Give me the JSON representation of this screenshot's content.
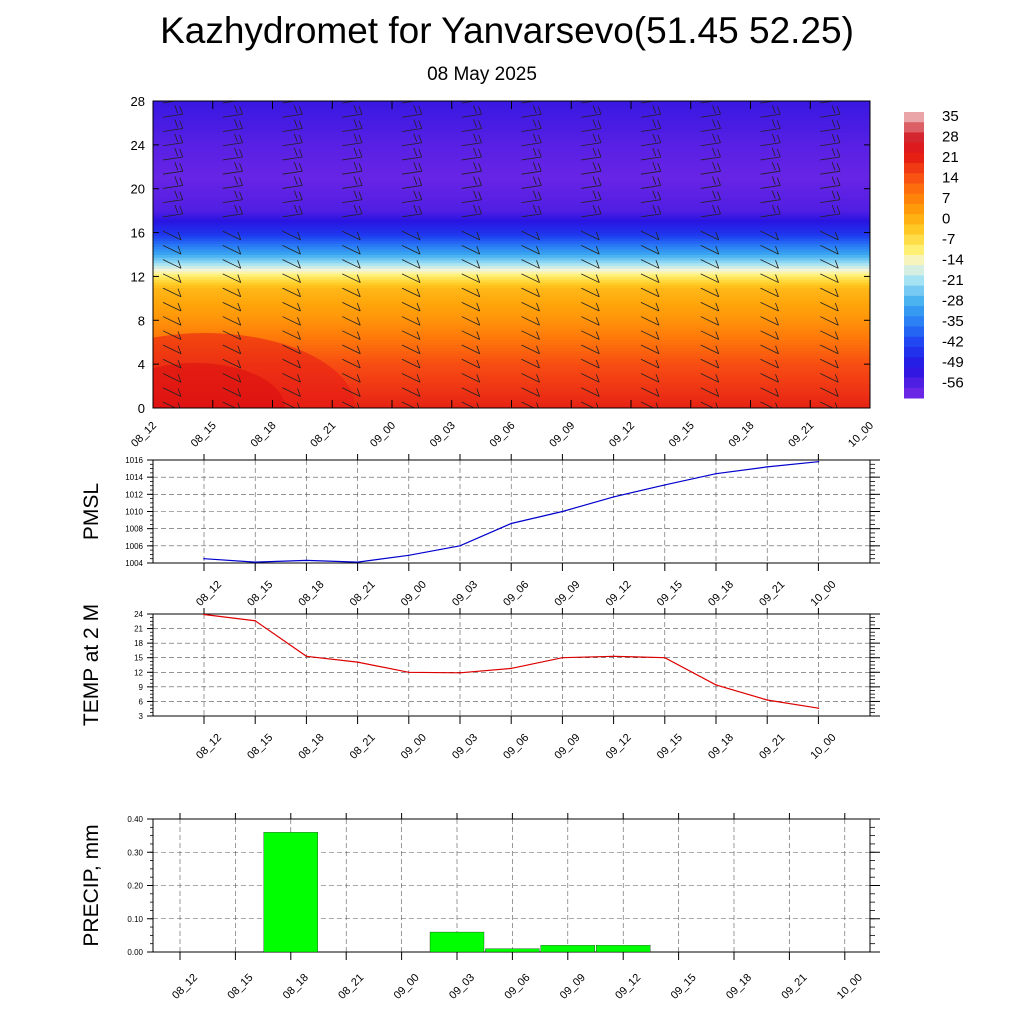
{
  "header": {
    "title": "Kazhydromet for Yanvarsevo(51.45 52.25)",
    "date": "08 May 2025"
  },
  "chart_data": [
    {
      "type": "heatmap",
      "title": "",
      "x_tick_labels": [
        "08_12",
        "08_15",
        "08_18",
        "08_21",
        "09_00",
        "09_03",
        "09_06",
        "09_09",
        "09_12",
        "09_15",
        "09_18",
        "09_21",
        "10_00"
      ],
      "y_ticks": [
        0,
        4,
        8,
        12,
        16,
        20,
        24,
        28
      ],
      "ylim": [
        0,
        28
      ],
      "colorbar": {
        "labels": [
          "35",
          "28",
          "21",
          "14",
          "7",
          "0",
          "-7",
          "-14",
          "-21",
          "-28",
          "-35",
          "-42",
          "-49",
          "-56"
        ],
        "range": [
          -60,
          38
        ]
      },
      "temperature_profile": [
        {
          "level": 0,
          "value": 22
        },
        {
          "level": 4,
          "value": 16
        },
        {
          "level": 8,
          "value": 6
        },
        {
          "level": 11,
          "value": 0
        },
        {
          "level": 12,
          "value": -8
        },
        {
          "level": 14,
          "value": -28
        },
        {
          "level": 16,
          "value": -44
        },
        {
          "level": 18,
          "value": -55
        },
        {
          "level": 21,
          "value": -58
        },
        {
          "level": 24,
          "value": -56
        },
        {
          "level": 28,
          "value": -52
        }
      ],
      "overlay": "wind barbs"
    },
    {
      "type": "line",
      "ylabel": "PMSL",
      "categories": [
        "08_12",
        "08_15",
        "08_18",
        "08_21",
        "09_00",
        "09_03",
        "09_06",
        "09_09",
        "09_12",
        "09_15",
        "09_18",
        "09_21",
        "10_00"
      ],
      "y_ticks": [
        1004,
        1006,
        1008,
        1010,
        1012,
        1014,
        1016
      ],
      "ylim": [
        1004,
        1016
      ],
      "grid": true,
      "color": "#0000cc",
      "values": [
        1004.5,
        1004.1,
        1004.3,
        1004.1,
        1004.9,
        1006.0,
        1008.6,
        1010.0,
        1011.7,
        1013.1,
        1014.4,
        1015.2,
        1015.8
      ]
    },
    {
      "type": "line",
      "ylabel": "TEMP at 2 M",
      "categories": [
        "08_12",
        "08_15",
        "08_18",
        "08_21",
        "09_00",
        "09_03",
        "09_06",
        "09_09",
        "09_12",
        "09_15",
        "09_18",
        "09_21",
        "10_00"
      ],
      "y_ticks": [
        3,
        6,
        9,
        12,
        15,
        18,
        21,
        24
      ],
      "ylim": [
        3,
        24
      ],
      "grid": true,
      "color": "#dd0000",
      "values": [
        23.9,
        22.6,
        15.3,
        14.1,
        12.0,
        11.9,
        12.8,
        15.0,
        15.3,
        15.0,
        9.4,
        6.3,
        4.6
      ]
    },
    {
      "type": "bar",
      "ylabel": "PRECIP, mm",
      "categories": [
        "08_12",
        "08_15",
        "08_18",
        "08_21",
        "09_00",
        "09_03",
        "09_06",
        "09_09",
        "09_12",
        "09_15",
        "09_18",
        "09_21",
        "10_00"
      ],
      "y_tick_labels": [
        "0.00",
        "0.10",
        "0.20",
        "0.30",
        "0.40"
      ],
      "ylim": [
        0,
        0.4
      ],
      "grid": true,
      "color": "#00ff00",
      "values": [
        0,
        0,
        0.36,
        0,
        0,
        0.06,
        0.01,
        0.02,
        0.02,
        0,
        0,
        0,
        0
      ]
    }
  ]
}
